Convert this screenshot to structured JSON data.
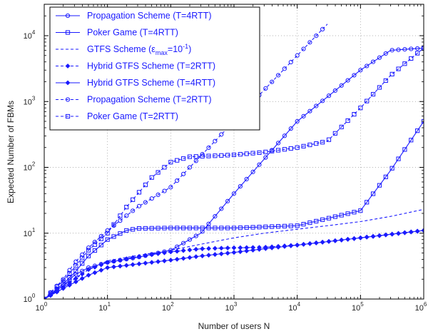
{
  "chart_data": {
    "type": "line",
    "xlabel": "Number of users N",
    "ylabel": "Expected Number of FBMs",
    "xscale": "log",
    "yscale": "log",
    "xlim": [
      1,
      1000000
    ],
    "ylim": [
      1,
      30000
    ],
    "grid": true,
    "legend_position": "top-left",
    "x_ticks": [
      {
        "value": 1,
        "base": "10",
        "exp": "0"
      },
      {
        "value": 10,
        "base": "10",
        "exp": "1"
      },
      {
        "value": 100,
        "base": "10",
        "exp": "2"
      },
      {
        "value": 1000,
        "base": "10",
        "exp": "3"
      },
      {
        "value": 10000,
        "base": "10",
        "exp": "4"
      },
      {
        "value": 100000,
        "base": "10",
        "exp": "5"
      },
      {
        "value": 1000000,
        "base": "10",
        "exp": "6"
      }
    ],
    "y_ticks": [
      {
        "value": 1,
        "base": "10",
        "exp": "0"
      },
      {
        "value": 10,
        "base": "10",
        "exp": "1"
      },
      {
        "value": 100,
        "base": "10",
        "exp": "2"
      },
      {
        "value": 1000,
        "base": "10",
        "exp": "3"
      },
      {
        "value": 10000,
        "base": "10",
        "exp": "4"
      }
    ],
    "series": [
      {
        "name": "Propagation Scheme (T=4RTT)",
        "line_style": "solid",
        "marker": "circle",
        "x": [
          1,
          2,
          3,
          5,
          10,
          30,
          100,
          300,
          1000,
          10000,
          100000,
          300000,
          1000000
        ],
        "y": [
          1,
          1.6,
          2.3,
          3.0,
          3.6,
          4.3,
          5.5,
          10,
          40,
          500,
          3000,
          6000,
          6500
        ]
      },
      {
        "name": "Poker Game (T=4RTT)",
        "line_style": "solid",
        "marker": "square",
        "x": [
          1,
          2,
          3,
          5,
          10,
          20,
          30,
          100,
          1000,
          10000,
          100000,
          300000,
          1000000
        ],
        "y": [
          1,
          1.7,
          2.5,
          4.5,
          8,
          11,
          11.8,
          12,
          12,
          13,
          22,
          90,
          500
        ]
      },
      {
        "name": "GTFS Scheme (ε_max=10^-1)",
        "line_style": "dashed",
        "marker": "none",
        "x": [
          1,
          2,
          5,
          10,
          30,
          100,
          300,
          1000,
          3000,
          10000,
          30000,
          100000,
          300000,
          1000000
        ],
        "y": [
          1,
          1.6,
          2.8,
          3.8,
          4.6,
          5.5,
          6.8,
          8.5,
          10,
          11.5,
          13,
          15,
          18,
          23
        ]
      },
      {
        "name": "Hybrid GTFS Scheme (T=2RTT)",
        "line_style": "dashed",
        "marker": "diamond",
        "x": [
          1,
          2,
          5,
          10,
          30,
          100,
          300,
          1000,
          3000,
          10000,
          100000,
          1000000
        ],
        "y": [
          1,
          1.5,
          2.8,
          3.6,
          4.4,
          5.2,
          5.8,
          6.0,
          6.1,
          6.6,
          8.5,
          11
        ]
      },
      {
        "name": "Hybrid GTFS Scheme (T=4RTT)",
        "line_style": "solid",
        "marker": "diamond",
        "x": [
          1,
          2,
          5,
          10,
          30,
          100,
          300,
          1000,
          3000,
          10000,
          100000,
          1000000
        ],
        "y": [
          1,
          1.45,
          2.3,
          3.0,
          3.4,
          3.9,
          4.5,
          5.1,
          5.8,
          6.6,
          8.5,
          11
        ]
      },
      {
        "name": "Propagation Scheme (T=2RTT)",
        "line_style": "dashed",
        "marker": "circle",
        "x": [
          1,
          2,
          3,
          5,
          10,
          30,
          100,
          300,
          1000,
          3000,
          10000,
          30000
        ],
        "y": [
          1,
          2.0,
          3.5,
          6.0,
          11,
          25,
          50,
          150,
          500,
          1500,
          5000,
          15000
        ]
      },
      {
        "name": "Poker Game (T=2RTT)",
        "line_style": "dashed",
        "marker": "square",
        "x": [
          1,
          2,
          3,
          5,
          10,
          20,
          50,
          100,
          200,
          500,
          1000,
          3000,
          10000,
          30000,
          100000,
          300000,
          1000000
        ],
        "y": [
          1,
          1.9,
          3.0,
          5.5,
          10,
          25,
          70,
          120,
          145,
          150,
          155,
          170,
          200,
          250,
          800,
          2500,
          6500
        ]
      }
    ]
  }
}
